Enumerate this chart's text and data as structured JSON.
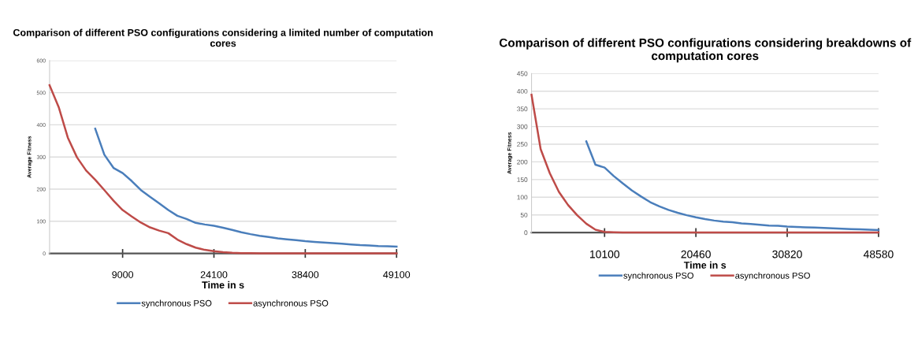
{
  "chart_data": [
    {
      "type": "line",
      "title": "Comparison of different PSO configurations considering a limited number of computation cores",
      "xlabel": "Time in s",
      "ylabel": "Average Fitness",
      "categories": [
        null,
        null,
        null,
        null,
        null,
        null,
        null,
        null,
        "9000",
        null,
        null,
        null,
        null,
        null,
        null,
        null,
        null,
        null,
        "24100",
        null,
        null,
        null,
        null,
        null,
        null,
        null,
        null,
        null,
        "38400",
        null,
        null,
        null,
        null,
        null,
        null,
        null,
        null,
        null,
        "49100"
      ],
      "ylim": [
        0,
        600
      ],
      "yticks": [
        0,
        100,
        200,
        300,
        400,
        500,
        600
      ],
      "grid": "y",
      "legend": "bottom",
      "marker": "none",
      "line_style": "solid",
      "series": [
        {
          "name": "synchronous PSO",
          "color": "#4a7ebb",
          "values": [
            null,
            null,
            null,
            null,
            null,
            388,
            307,
            266,
            250,
            225,
            197,
            176,
            156,
            135,
            117,
            107,
            95,
            90,
            86,
            80,
            73,
            66,
            60,
            55,
            51,
            47,
            44,
            41,
            38,
            36,
            34,
            32,
            30,
            28,
            26,
            25,
            23,
            22,
            21
          ]
        },
        {
          "name": "asynchronous PSO",
          "color": "#be4b48",
          "values": [
            523,
            455,
            360,
            299,
            258,
            229,
            197,
            164,
            135,
            115,
            96,
            81,
            71,
            63,
            43,
            29,
            18,
            11,
            7,
            4,
            2,
            1,
            1,
            0,
            0,
            0,
            0,
            0,
            0,
            0,
            0,
            0,
            0,
            0,
            0,
            0,
            0,
            0,
            0
          ]
        }
      ]
    },
    {
      "type": "line",
      "title": "Comparison of different PSO configurations considering breakdowns of computation cores",
      "xlabel": "Time in s",
      "ylabel": "Average Fitness",
      "categories": [
        null,
        null,
        null,
        null,
        null,
        null,
        null,
        null,
        "10100",
        null,
        null,
        null,
        null,
        null,
        null,
        null,
        null,
        null,
        "20460",
        null,
        null,
        null,
        null,
        null,
        null,
        null,
        null,
        null,
        "30820",
        null,
        null,
        null,
        null,
        null,
        null,
        null,
        null,
        null,
        "48580"
      ],
      "ylim": [
        0,
        450
      ],
      "yticks": [
        0,
        50,
        100,
        150,
        200,
        250,
        300,
        350,
        400,
        450
      ],
      "grid": "y",
      "legend": "bottom",
      "marker": "none",
      "line_style": "solid",
      "series": [
        {
          "name": "synchronous PSO",
          "color": "#4a7ebb",
          "values": [
            null,
            null,
            null,
            null,
            null,
            null,
            258,
            192,
            184,
            160,
            139,
            119,
            102,
            86,
            74,
            64,
            56,
            49,
            43,
            38,
            34,
            31,
            29,
            26,
            24,
            22,
            20,
            19,
            17,
            16,
            15,
            14,
            13,
            12,
            11,
            10,
            9,
            8,
            7
          ]
        },
        {
          "name": "asynchronous PSO",
          "color": "#be4b48",
          "values": [
            390,
            236,
            168,
            115,
            78,
            49,
            25,
            8,
            2,
            1,
            0,
            0,
            0,
            0,
            0,
            0,
            0,
            0,
            0,
            0,
            0,
            0,
            0,
            0,
            0,
            0,
            0,
            0,
            0,
            0,
            0,
            0,
            0,
            0,
            0,
            0,
            0,
            0,
            0
          ]
        }
      ]
    }
  ]
}
